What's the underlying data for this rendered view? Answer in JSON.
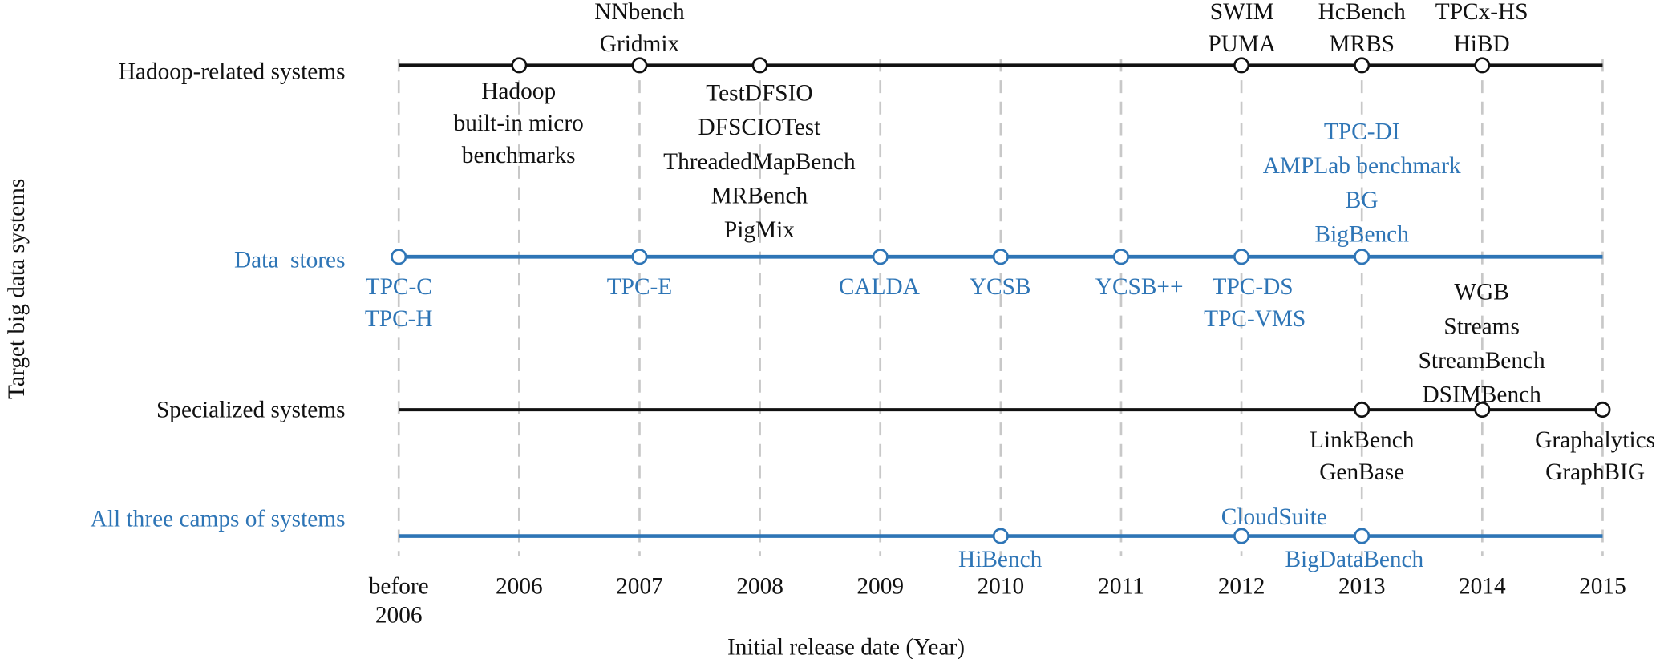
{
  "colors": {
    "blue": "#2e75b6",
    "black": "#111111",
    "grid": "#c8c8c8"
  },
  "axis": {
    "y_label": "Target big data systems",
    "x_label": "Initial release date (Year)",
    "ticks": [
      [
        "before",
        "2006"
      ],
      [
        "2006"
      ],
      [
        "2007"
      ],
      [
        "2008"
      ],
      [
        "2009"
      ],
      [
        "2010"
      ],
      [
        "2011"
      ],
      [
        "2012"
      ],
      [
        "2013"
      ],
      [
        "2014"
      ],
      [
        "2015"
      ]
    ]
  },
  "rows": {
    "hadoop": {
      "label": "Hadoop-related systems",
      "events": {
        "e2006": [
          "Hadoop",
          "built-in micro",
          "benchmarks"
        ],
        "e2007": [
          "NNbench",
          "Gridmix"
        ],
        "e2008": [
          "TestDFSIO",
          "DFSCIOTest",
          "ThreadedMapBench",
          "MRBench",
          "PigMix"
        ],
        "e2012": [
          "SWIM",
          "PUMA"
        ],
        "e2013": [
          "HcBench",
          "MRBS"
        ],
        "e2014": [
          "TPCx-HS",
          "HiBD"
        ]
      }
    },
    "datastores": {
      "label": "Data  stores",
      "events": {
        "before2006": [
          "TPC-C",
          "TPC-H"
        ],
        "e2007": [
          "TPC-E"
        ],
        "e2009": [
          "CALDA"
        ],
        "e2010": [
          "YCSB"
        ],
        "e2011": [
          "YCSB++"
        ],
        "e2012": [
          "TPC-DS",
          "TPC-VMS"
        ],
        "e2013": [
          "TPC-DI",
          "AMPLab benchmark",
          "BG",
          "BigBench"
        ]
      }
    },
    "specialized": {
      "label": "Specialized systems",
      "events": {
        "e2013": [
          "LinkBench",
          "GenBase"
        ],
        "e2014": [
          "WGB",
          "Streams",
          "StreamBench",
          "DSIMBench"
        ],
        "e2015": [
          "Graphalytics",
          "GraphBIG"
        ]
      }
    },
    "all": {
      "label": "All three camps of systems",
      "events": {
        "e2010": [
          "HiBench"
        ],
        "e2012": [
          "CloudSuite"
        ],
        "e2013": [
          "BigDataBench"
        ]
      }
    }
  }
}
